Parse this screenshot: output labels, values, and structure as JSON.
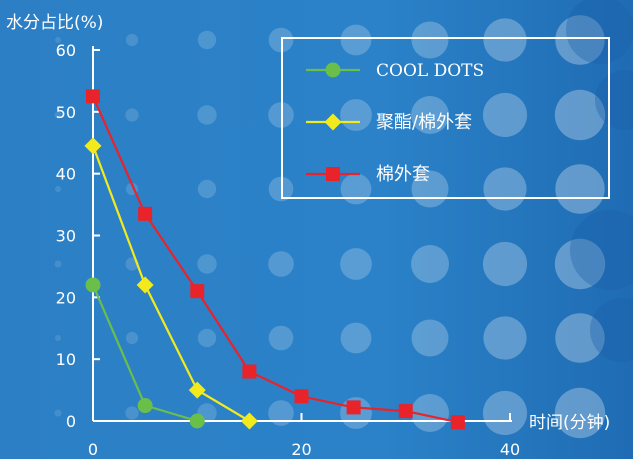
{
  "chart_data": {
    "type": "line",
    "title": "",
    "ylabel": "水分占比(%)",
    "xlabel": "时间(分钟)",
    "xlim": [
      0,
      40
    ],
    "ylim": [
      0,
      60
    ],
    "x_ticks": [
      0,
      20,
      40
    ],
    "y_ticks": [
      0,
      10,
      20,
      30,
      40,
      50,
      60
    ],
    "x_tick_labels": [
      "0",
      "20",
      "40"
    ],
    "y_tick_labels": [
      "0",
      "10",
      "20",
      "30",
      "40",
      "50",
      "60"
    ],
    "legend_position": "top-right",
    "grid": false,
    "series": [
      {
        "name": "COOL DOTS",
        "color": "#6abf4b",
        "marker": "circle",
        "x": [
          0,
          5,
          10
        ],
        "values": [
          22,
          2.5,
          0
        ]
      },
      {
        "name": "聚酯/棉外套",
        "color": "#f3ea1e",
        "marker": "diamond",
        "x": [
          0,
          5,
          10,
          15
        ],
        "values": [
          44.5,
          22,
          5,
          0
        ]
      },
      {
        "name": "棉外套",
        "color": "#e8232a",
        "marker": "square",
        "x": [
          0,
          5,
          10,
          15,
          20,
          25,
          30,
          35
        ],
        "values": [
          52.5,
          33.5,
          21,
          8,
          4,
          2.2,
          1.6,
          -0.2
        ]
      }
    ]
  },
  "colors": {
    "background": "#2a7ec4",
    "axis": "#ffffff"
  }
}
